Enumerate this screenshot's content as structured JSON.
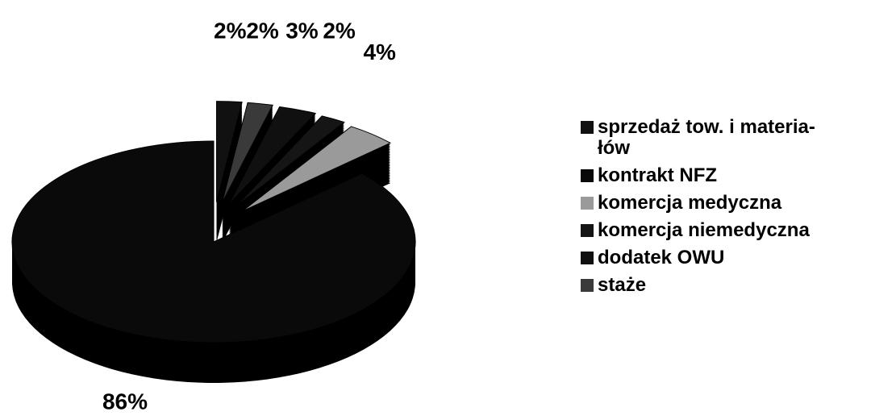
{
  "chart_data": {
    "type": "pie",
    "categories": [
      "sprzedaż tow. i materia-\nłów",
      "kontrakt NFZ",
      "komercja medyczna",
      "komercja niemedyczna",
      "dodatek OWU",
      "staże"
    ],
    "values": [
      2,
      86,
      4,
      2,
      3,
      2
    ],
    "value_labels": [
      "2%",
      "86%",
      "4%",
      "2%",
      "3%",
      "2%"
    ],
    "colors": [
      "#111111",
      "#0a0a0a",
      "#9a9a9a",
      "#151515",
      "#101010",
      "#3a3a3a"
    ],
    "legend": "right"
  }
}
